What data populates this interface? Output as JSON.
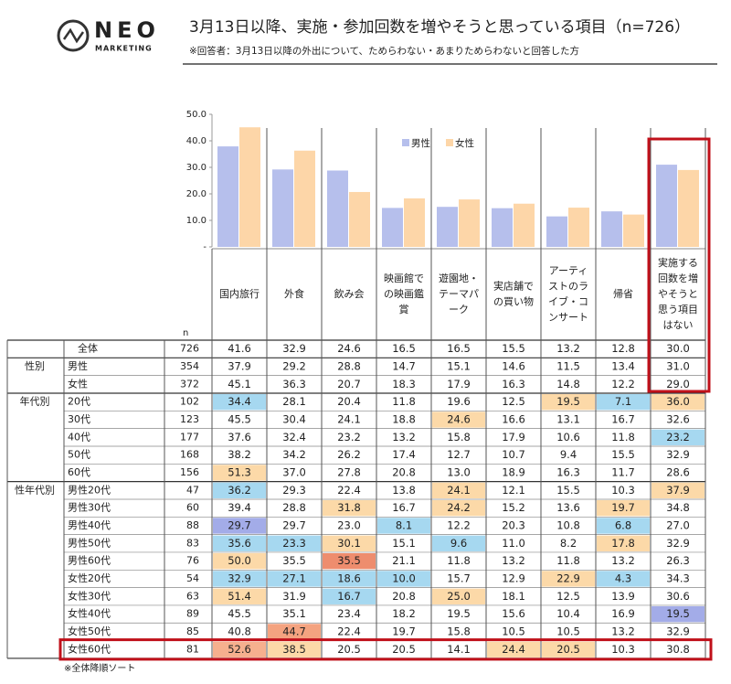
{
  "header": {
    "logo": "NEO",
    "logo_sub": "MARKETING",
    "title": "3月13日以降、実施・参加回数を増やそうと思っている項目（n=726）",
    "note": "※回答者：3月13日以降の外出について、ためらわない・あまりためらわないと回答した方"
  },
  "chart_data": {
    "type": "bar",
    "categories": [
      "国内旅行",
      "外食",
      "飲み会",
      "映画館での映画鑑賞",
      "遊園地・テーマパーク",
      "実店舗での買い物",
      "アーティストのライブ・コンサート",
      "帰省",
      "実施する回数を増やそうと思う項目はない"
    ],
    "series": [
      {
        "name": "男性",
        "color": "#b6bfec",
        "values": [
          37.9,
          29.2,
          28.8,
          14.7,
          15.1,
          14.6,
          11.5,
          13.4,
          31.0
        ]
      },
      {
        "name": "女性",
        "color": "#fdd6a8",
        "values": [
          45.1,
          36.3,
          20.7,
          18.3,
          17.9,
          16.3,
          14.8,
          12.2,
          29.0
        ]
      }
    ],
    "ylim": [
      0,
      50
    ],
    "yticks": [
      {
        "value": 0,
        "label": "-"
      },
      {
        "value": 10,
        "label": "10.0"
      },
      {
        "value": 20,
        "label": "20.0"
      },
      {
        "value": 30,
        "label": "30.0"
      },
      {
        "value": 40,
        "label": "40.0"
      },
      {
        "value": 50,
        "label": "50.0"
      }
    ]
  },
  "table": {
    "n_label": "n",
    "rows": [
      {
        "label": "全体",
        "n": 726,
        "values": [
          "41.6",
          "32.9",
          "24.6",
          "16.5",
          "16.5",
          "15.5",
          "13.2",
          "12.8",
          "30.0"
        ],
        "fills": [
          null,
          null,
          null,
          null,
          null,
          null,
          null,
          null,
          null
        ]
      },
      {
        "group": "性別",
        "label": "男性",
        "n": 354,
        "values": [
          "37.9",
          "29.2",
          "28.8",
          "14.7",
          "15.1",
          "14.6",
          "11.5",
          "13.4",
          "31.0"
        ],
        "fills": [
          null,
          null,
          null,
          null,
          null,
          null,
          null,
          null,
          null
        ]
      },
      {
        "label": "女性",
        "n": 372,
        "values": [
          "45.1",
          "36.3",
          "20.7",
          "18.3",
          "17.9",
          "16.3",
          "14.8",
          "12.2",
          "29.0"
        ],
        "fills": [
          null,
          null,
          null,
          null,
          null,
          null,
          null,
          null,
          null
        ]
      },
      {
        "group": "年代別",
        "label": "20代",
        "n": 102,
        "values": [
          "34.4",
          "28.1",
          "20.4",
          "11.8",
          "19.6",
          "12.5",
          "19.5",
          "7.1",
          "36.0"
        ],
        "fills": [
          "#a6d8f0",
          null,
          null,
          null,
          null,
          null,
          "#fcd9a8",
          "#a6d8f0",
          "#fcd9a8"
        ]
      },
      {
        "label": "30代",
        "n": 123,
        "values": [
          "45.5",
          "30.4",
          "24.1",
          "18.8",
          "24.6",
          "16.6",
          "13.1",
          "16.7",
          "32.6"
        ],
        "fills": [
          null,
          null,
          null,
          null,
          "#fcd9a8",
          null,
          null,
          null,
          null
        ]
      },
      {
        "label": "40代",
        "n": 177,
        "values": [
          "37.6",
          "32.4",
          "23.2",
          "13.2",
          "15.8",
          "17.9",
          "10.6",
          "11.8",
          "23.2"
        ],
        "fills": [
          null,
          null,
          null,
          null,
          null,
          null,
          null,
          null,
          "#a6d8f0"
        ]
      },
      {
        "label": "50代",
        "n": 168,
        "values": [
          "38.2",
          "34.2",
          "26.2",
          "17.4",
          "12.7",
          "10.7",
          "9.4",
          "15.5",
          "32.9"
        ],
        "fills": [
          null,
          null,
          null,
          null,
          null,
          null,
          null,
          null,
          null
        ]
      },
      {
        "label": "60代",
        "n": 156,
        "values": [
          "51.3",
          "37.0",
          "27.8",
          "20.8",
          "13.0",
          "18.9",
          "16.3",
          "11.7",
          "28.6"
        ],
        "fills": [
          "#fcd9a8",
          null,
          null,
          null,
          null,
          null,
          null,
          null,
          null
        ]
      },
      {
        "group": "性年代別",
        "label": "男性20代",
        "n": 47,
        "values": [
          "36.2",
          "29.3",
          "22.4",
          "13.8",
          "24.1",
          "12.1",
          "15.5",
          "10.3",
          "37.9"
        ],
        "fills": [
          "#a6d8f0",
          null,
          null,
          null,
          "#fcd9a8",
          null,
          null,
          null,
          "#fcd9a8"
        ]
      },
      {
        "label": "男性30代",
        "n": 60,
        "values": [
          "39.4",
          "28.8",
          "31.8",
          "16.7",
          "24.2",
          "15.2",
          "13.6",
          "19.7",
          "34.8"
        ],
        "fills": [
          null,
          null,
          "#fcd9a8",
          null,
          "#fcd9a8",
          null,
          null,
          "#fcd9a8",
          null
        ]
      },
      {
        "label": "男性40代",
        "n": 88,
        "values": [
          "29.7",
          "29.7",
          "23.0",
          "8.1",
          "12.2",
          "20.3",
          "10.8",
          "6.8",
          "27.0"
        ],
        "fills": [
          "#a3ace8",
          null,
          null,
          "#a6d8f0",
          null,
          null,
          null,
          "#a6d8f0",
          null
        ]
      },
      {
        "label": "男性50代",
        "n": 83,
        "values": [
          "35.6",
          "23.3",
          "30.1",
          "15.1",
          "9.6",
          "11.0",
          "8.2",
          "17.8",
          "32.9"
        ],
        "fills": [
          "#a6d8f0",
          "#a6d8f0",
          "#fcd9a8",
          null,
          "#a6d8f0",
          null,
          null,
          "#fcd9a8",
          null
        ]
      },
      {
        "label": "男性60代",
        "n": 76,
        "values": [
          "50.0",
          "35.5",
          "35.5",
          "21.1",
          "11.8",
          "13.2",
          "11.8",
          "13.2",
          "26.3"
        ],
        "fills": [
          "#fcd9a8",
          null,
          "#ee8d6e",
          null,
          null,
          null,
          null,
          null,
          null
        ]
      },
      {
        "label": "女性20代",
        "n": 54,
        "values": [
          "32.9",
          "27.1",
          "18.6",
          "10.0",
          "15.7",
          "12.9",
          "22.9",
          "4.3",
          "34.3"
        ],
        "fills": [
          "#a6d8f0",
          "#a6d8f0",
          "#a6d8f0",
          "#a6d8f0",
          null,
          null,
          "#fcd9a8",
          "#a6d8f0",
          null
        ]
      },
      {
        "label": "女性30代",
        "n": 63,
        "values": [
          "51.4",
          "31.9",
          "16.7",
          "20.8",
          "25.0",
          "18.1",
          "12.5",
          "13.9",
          "30.6"
        ],
        "fills": [
          "#fcd9a8",
          null,
          "#a6d8f0",
          null,
          "#fcd9a8",
          null,
          null,
          null,
          null
        ]
      },
      {
        "label": "女性40代",
        "n": 89,
        "values": [
          "45.5",
          "35.1",
          "23.4",
          "18.2",
          "19.5",
          "15.6",
          "10.4",
          "16.9",
          "19.5"
        ],
        "fills": [
          null,
          null,
          null,
          null,
          null,
          null,
          null,
          null,
          "#a3ace8"
        ]
      },
      {
        "label": "女性50代",
        "n": 85,
        "values": [
          "40.8",
          "44.7",
          "22.4",
          "19.7",
          "15.8",
          "10.5",
          "10.5",
          "13.2",
          "32.9"
        ],
        "fills": [
          null,
          "#f4a380",
          null,
          null,
          null,
          null,
          null,
          null,
          null
        ]
      },
      {
        "label": "女性60代",
        "n": 81,
        "values": [
          "52.6",
          "38.5",
          "20.5",
          "20.5",
          "14.1",
          "24.4",
          "20.5",
          "10.3",
          "30.8"
        ],
        "fills": [
          "#f6b08e",
          "#fcd9a8",
          null,
          null,
          null,
          "#fcd9a8",
          "#fcd9a8",
          null,
          null
        ]
      }
    ],
    "footnote": "※全体降順ソート"
  }
}
